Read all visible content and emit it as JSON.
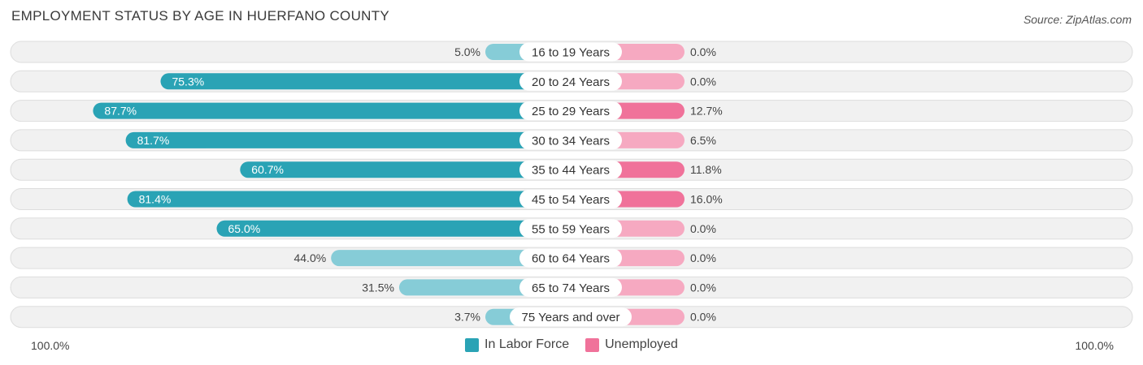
{
  "title": "EMPLOYMENT STATUS BY AGE IN HUERFANO COUNTY",
  "source": "Source: ZipAtlas.com",
  "axis": {
    "left_label": "100.0%",
    "right_label": "100.0%"
  },
  "legend": [
    {
      "label": "In Labor Force",
      "color": "#2aa3b5"
    },
    {
      "label": "Unemployed",
      "color": "#f0729a"
    }
  ],
  "colors": {
    "labor_strong": "#2aa3b5",
    "labor_light": "#86ccd7",
    "unemp_strong": "#f0729a",
    "unemp_light": "#f6a9c1",
    "row_bg": "#f1f1f1",
    "row_border": "#dddddd"
  },
  "chart_data": {
    "type": "bar",
    "orientation": "horizontal-diverging",
    "title": "EMPLOYMENT STATUS BY AGE IN HUERFANO COUNTY",
    "categories": [
      "16 to 19 Years",
      "20 to 24 Years",
      "25 to 29 Years",
      "30 to 34 Years",
      "35 to 44 Years",
      "45 to 54 Years",
      "55 to 59 Years",
      "60 to 64 Years",
      "65 to 74 Years",
      "75 Years and over"
    ],
    "series": [
      {
        "name": "In Labor Force",
        "values": [
          5.0,
          75.3,
          87.7,
          81.7,
          60.7,
          81.4,
          65.0,
          44.0,
          31.5,
          3.7
        ],
        "labels": [
          "5.0%",
          "75.3%",
          "87.7%",
          "81.7%",
          "60.7%",
          "81.4%",
          "65.0%",
          "44.0%",
          "31.5%",
          "3.7%"
        ]
      },
      {
        "name": "Unemployed",
        "values": [
          0.0,
          0.0,
          12.7,
          6.5,
          11.8,
          16.0,
          0.0,
          0.0,
          0.0,
          0.0
        ],
        "labels": [
          "0.0%",
          "0.0%",
          "12.7%",
          "6.5%",
          "11.8%",
          "16.0%",
          "0.0%",
          "0.0%",
          "0.0%",
          "0.0%"
        ]
      }
    ],
    "xlim": [
      -100,
      100
    ],
    "legend_position": "bottom-center"
  }
}
